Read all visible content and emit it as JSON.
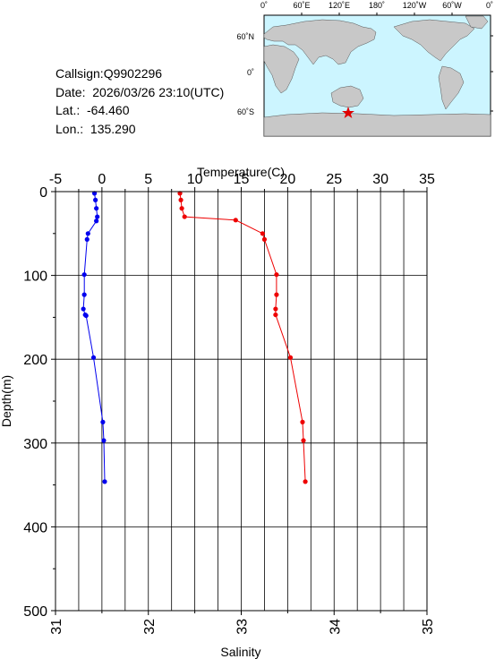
{
  "info": {
    "callsign": "Callsign:Q9902296",
    "date": "Date:  2026/03/26 23:10(UTC)",
    "lat": "Lat.:  -64.460",
    "lon": "Lon.:  135.290"
  },
  "map": {
    "top_labels": [
      "0˚",
      "60˚E",
      "120˚E",
      "180˚",
      "120˚W",
      "60˚W",
      "0˚"
    ],
    "right_labels": [
      "60˚N",
      "0˚",
      "60˚S"
    ],
    "ocean_color": "#ccf5ff",
    "land_color": "#c8c8c8",
    "marker": {
      "lat": -64.46,
      "lon": 135.29,
      "color": "#e00000",
      "icon": "star-icon"
    }
  },
  "chart_data": {
    "type": "line",
    "ylabel": "Depth(m)",
    "ylim": [
      500,
      0
    ],
    "yticks": [
      "0",
      "100",
      "200",
      "300",
      "400",
      "500"
    ],
    "top_axis": {
      "label": "Temperature(C)",
      "range": [
        -5,
        35
      ],
      "ticks": [
        "-5",
        "0",
        "5",
        "10",
        "15",
        "20",
        "25",
        "30",
        "35"
      ]
    },
    "bottom_axis": {
      "label": "Salinity",
      "range": [
        31,
        35
      ],
      "ticks": [
        "31",
        "32",
        "33",
        "34",
        "35"
      ]
    },
    "grid": true,
    "series": [
      {
        "axis": "top",
        "color": "#0000ee",
        "x": [
          -0.8,
          -0.7,
          -0.6,
          -0.5,
          -0.6,
          -1.5,
          -1.6,
          -1.9,
          -1.9,
          -2.0,
          -1.8,
          -1.7,
          -0.9,
          0.1,
          0.2,
          0.3
        ],
        "y": [
          2,
          10,
          20,
          30,
          35,
          50,
          57,
          99,
          123,
          140,
          147,
          148,
          198,
          275,
          297,
          346
        ]
      },
      {
        "axis": "bottom",
        "color": "#ee0000",
        "x": [
          32.34,
          32.35,
          32.36,
          32.39,
          32.94,
          33.23,
          33.25,
          33.38,
          33.38,
          33.37,
          33.37,
          33.53,
          33.66,
          33.67,
          33.69
        ],
        "y": [
          2,
          10,
          20,
          30,
          34,
          50,
          57,
          99,
          123,
          140,
          147,
          198,
          275,
          297,
          346
        ]
      }
    ]
  }
}
